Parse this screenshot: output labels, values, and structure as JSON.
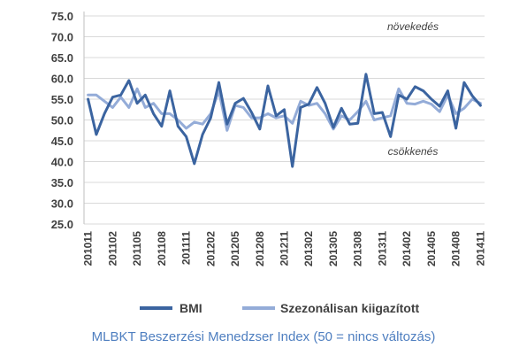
{
  "chart_data": {
    "type": "line",
    "title": "",
    "caption": "MLBKT Beszerzési Menedzser Index (50 = nincs változás)",
    "xlabel": "",
    "ylabel": "",
    "ylim": [
      25,
      75
    ],
    "ytick_labels": [
      "75.0",
      "70.0",
      "65.0",
      "60.0",
      "55.0",
      "50.0",
      "45.0",
      "40.0",
      "35.0",
      "30.0",
      "25.0"
    ],
    "grid": true,
    "legend_position": "bottom",
    "x": [
      "201011",
      "201012",
      "201101",
      "201102",
      "201103",
      "201104",
      "201105",
      "201106",
      "201107",
      "201108",
      "201109",
      "201110",
      "201111",
      "201112",
      "201201",
      "201202",
      "201203",
      "201204",
      "201205",
      "201206",
      "201207",
      "201208",
      "201209",
      "201210",
      "201211",
      "201212",
      "201301",
      "201302",
      "201303",
      "201304",
      "201305",
      "201306",
      "201307",
      "201308",
      "201309",
      "201310",
      "201311",
      "201312",
      "201401",
      "201402",
      "201403",
      "201404",
      "201405",
      "201406",
      "201407",
      "201408",
      "201409",
      "201410",
      "201411"
    ],
    "x_tick_labels": [
      "201011",
      "201102",
      "201105",
      "201108",
      "201111",
      "201202",
      "201205",
      "201208",
      "201211",
      "201302",
      "201305",
      "201308",
      "201311",
      "201402",
      "201405",
      "201408",
      "201411"
    ],
    "series": [
      {
        "name": "BMI",
        "color": "#3b64a0",
        "values": [
          55.0,
          46.5,
          51.5,
          55.5,
          56.0,
          59.5,
          54.0,
          56.0,
          51.5,
          48.5,
          57.0,
          48.5,
          46.0,
          39.5,
          46.5,
          50.5,
          59.0,
          49.0,
          54.0,
          55.2,
          51.8,
          47.8,
          58.2,
          51.0,
          52.5,
          38.8,
          53.0,
          53.8,
          57.8,
          54.0,
          48.2,
          52.8,
          49.0,
          49.2,
          61.0,
          51.5,
          51.8,
          46.0,
          56.0,
          55.0,
          58.0,
          57.0,
          55.0,
          53.3,
          57.0,
          48.0,
          59.0,
          55.8,
          53.5
        ]
      },
      {
        "name": "Szezonálisan kiigazított",
        "color": "#94acd8",
        "values": [
          56.0,
          56.0,
          54.5,
          53.0,
          55.5,
          53.0,
          57.5,
          53.0,
          54.0,
          51.5,
          51.5,
          50.0,
          48.0,
          49.5,
          49.0,
          51.5,
          57.0,
          47.5,
          53.5,
          53.0,
          50.5,
          50.5,
          51.5,
          50.5,
          51.0,
          49.2,
          54.5,
          53.5,
          54.0,
          51.5,
          47.8,
          51.0,
          50.0,
          52.0,
          54.5,
          50.0,
          50.5,
          51.0,
          57.5,
          54.0,
          53.8,
          54.5,
          53.8,
          52.0,
          56.0,
          51.5,
          52.8,
          55.0,
          54.0
        ]
      }
    ],
    "annotations": [
      {
        "text": "növekedés",
        "y": 72.5
      },
      {
        "text": "csökkenés",
        "y": 42.5
      }
    ]
  }
}
